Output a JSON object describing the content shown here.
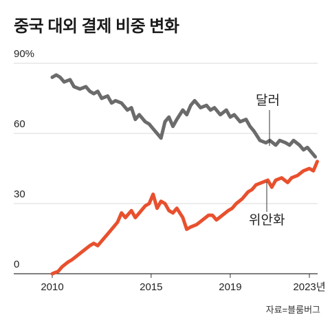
{
  "title": "중국 대외 결제 비중 변화",
  "source": "자료=블룸버그",
  "chart_data": {
    "type": "line",
    "title": "중국 대외 결제 비중 변화",
    "xlabel": "",
    "ylabel": "",
    "ylim": [
      0,
      90
    ],
    "xlim": [
      2010.0,
      2023.5
    ],
    "y_ticks": [
      {
        "value": 0,
        "label": "0"
      },
      {
        "value": 30,
        "label": "30"
      },
      {
        "value": 60,
        "label": "60"
      },
      {
        "value": 90,
        "label": "90%"
      }
    ],
    "x_ticks": [
      {
        "value": 2010,
        "label": "2010"
      },
      {
        "value": 2015,
        "label": "2015"
      },
      {
        "value": 2019,
        "label": "2019"
      },
      {
        "value": 2023,
        "label": "2023년"
      }
    ],
    "grid": "horizontal",
    "series": [
      {
        "name": "달러",
        "color": "#6b6b6b",
        "points": [
          [
            2010.0,
            84
          ],
          [
            2010.2,
            85
          ],
          [
            2010.4,
            84
          ],
          [
            2010.6,
            82
          ],
          [
            2010.9,
            83
          ],
          [
            2011.1,
            80
          ],
          [
            2011.4,
            79
          ],
          [
            2011.7,
            80
          ],
          [
            2011.9,
            78
          ],
          [
            2012.1,
            77
          ],
          [
            2012.3,
            78
          ],
          [
            2012.5,
            75
          ],
          [
            2012.8,
            76
          ],
          [
            2013.0,
            73
          ],
          [
            2013.2,
            74
          ],
          [
            2013.5,
            73
          ],
          [
            2013.8,
            70
          ],
          [
            2014.0,
            71
          ],
          [
            2014.2,
            66
          ],
          [
            2014.4,
            68
          ],
          [
            2014.7,
            65
          ],
          [
            2014.9,
            64
          ],
          [
            2015.1,
            62
          ],
          [
            2015.3,
            60
          ],
          [
            2015.5,
            58
          ],
          [
            2015.7,
            65
          ],
          [
            2015.9,
            67
          ],
          [
            2016.1,
            63
          ],
          [
            2016.3,
            66
          ],
          [
            2016.6,
            70
          ],
          [
            2016.8,
            68
          ],
          [
            2017.0,
            72
          ],
          [
            2017.2,
            74
          ],
          [
            2017.5,
            71
          ],
          [
            2017.8,
            72
          ],
          [
            2018.0,
            70
          ],
          [
            2018.2,
            71
          ],
          [
            2018.5,
            68
          ],
          [
            2018.8,
            70
          ],
          [
            2019.0,
            67
          ],
          [
            2019.2,
            68
          ],
          [
            2019.5,
            65
          ],
          [
            2019.8,
            66
          ],
          [
            2020.0,
            63
          ],
          [
            2020.2,
            61
          ],
          [
            2020.5,
            57
          ],
          [
            2020.8,
            56
          ],
          [
            2021.0,
            57
          ],
          [
            2021.3,
            55
          ],
          [
            2021.5,
            57
          ],
          [
            2021.8,
            56
          ],
          [
            2022.0,
            55
          ],
          [
            2022.2,
            57
          ],
          [
            2022.5,
            55
          ],
          [
            2022.7,
            53
          ],
          [
            2022.9,
            54
          ],
          [
            2023.1,
            52
          ],
          [
            2023.3,
            50
          ]
        ]
      },
      {
        "name": "위안화",
        "color": "#e8502e",
        "points": [
          [
            2010.0,
            0
          ],
          [
            2010.3,
            1
          ],
          [
            2010.5,
            3
          ],
          [
            2010.8,
            5
          ],
          [
            2011.0,
            6
          ],
          [
            2011.3,
            8
          ],
          [
            2011.6,
            10
          ],
          [
            2011.9,
            12
          ],
          [
            2012.1,
            13
          ],
          [
            2012.3,
            12
          ],
          [
            2012.6,
            15
          ],
          [
            2012.8,
            17
          ],
          [
            2013.1,
            20
          ],
          [
            2013.3,
            22
          ],
          [
            2013.5,
            26
          ],
          [
            2013.7,
            24
          ],
          [
            2014.0,
            27
          ],
          [
            2014.2,
            24
          ],
          [
            2014.4,
            26
          ],
          [
            2014.7,
            29
          ],
          [
            2014.9,
            30
          ],
          [
            2015.1,
            34
          ],
          [
            2015.3,
            28
          ],
          [
            2015.5,
            31
          ],
          [
            2015.7,
            30
          ],
          [
            2015.9,
            27
          ],
          [
            2016.1,
            26
          ],
          [
            2016.3,
            28
          ],
          [
            2016.6,
            24
          ],
          [
            2016.8,
            19
          ],
          [
            2017.0,
            20
          ],
          [
            2017.3,
            21
          ],
          [
            2017.6,
            23
          ],
          [
            2017.9,
            25
          ],
          [
            2018.1,
            25
          ],
          [
            2018.3,
            23
          ],
          [
            2018.6,
            25
          ],
          [
            2018.9,
            27
          ],
          [
            2019.1,
            28
          ],
          [
            2019.3,
            30
          ],
          [
            2019.6,
            32
          ],
          [
            2019.9,
            35
          ],
          [
            2020.1,
            36
          ],
          [
            2020.3,
            38
          ],
          [
            2020.6,
            39
          ],
          [
            2020.9,
            40
          ],
          [
            2021.1,
            37
          ],
          [
            2021.3,
            40
          ],
          [
            2021.6,
            41
          ],
          [
            2021.9,
            39
          ],
          [
            2022.1,
            41
          ],
          [
            2022.4,
            42
          ],
          [
            2022.7,
            44
          ],
          [
            2023.0,
            45
          ],
          [
            2023.2,
            44
          ],
          [
            2023.4,
            48
          ]
        ]
      }
    ],
    "annotations": [
      {
        "text": "달러",
        "series": "달러"
      },
      {
        "text": "위안화",
        "series": "위안화"
      }
    ]
  }
}
